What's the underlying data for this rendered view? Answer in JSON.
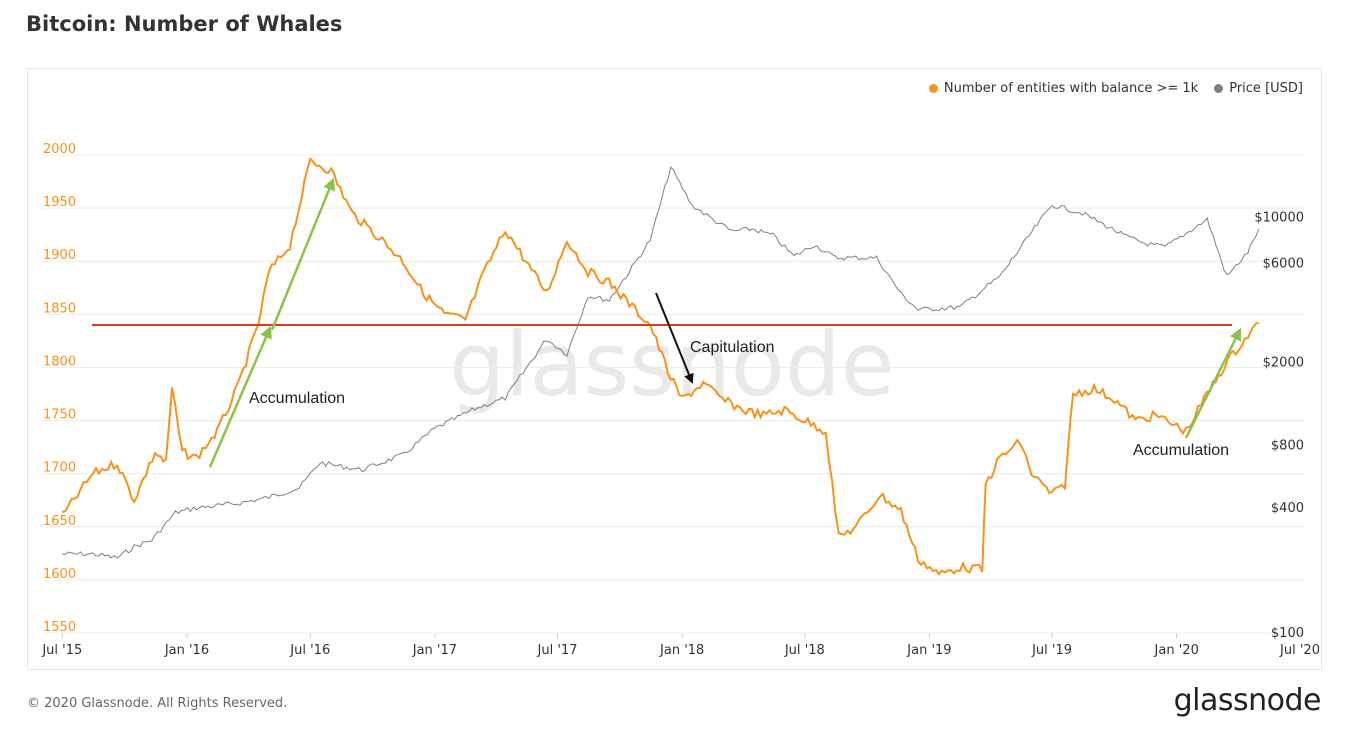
{
  "title": "Bitcoin: Number of Whales",
  "footer": "© 2020 Glassnode. All Rights Reserved.",
  "brand": "glassnode",
  "watermark": "glassnode",
  "legend": [
    {
      "label": "Number of entities with balance >= 1k",
      "color": "#f7931a"
    },
    {
      "label": "Price [USD]",
      "color": "#808080"
    }
  ],
  "annotations": [
    {
      "text": "Accumulation"
    },
    {
      "text": "Capitulation"
    },
    {
      "text": "Accumulation"
    }
  ],
  "chart_data": {
    "type": "line",
    "x_ticks": [
      "Jul '15",
      "Jan '16",
      "Jul '16",
      "Jan '17",
      "Jul '17",
      "Jan '18",
      "Jul '18",
      "Jan '19",
      "Jul '19",
      "Jan '20",
      "Jul '20"
    ],
    "y_left": {
      "ticks": [
        2000,
        1950,
        1900,
        1850,
        1800,
        1750,
        1700,
        1650,
        1600,
        1550
      ],
      "range": [
        1550,
        2000
      ],
      "color": "#f7931a"
    },
    "y_right": {
      "ticks": [
        "$10000",
        "$6000",
        "$2000",
        "$800",
        "$400",
        "$100"
      ],
      "scale": "log",
      "range": [
        100,
        20000
      ]
    },
    "grid": true,
    "legend_position": "top-right",
    "reference_line": {
      "value": 1840,
      "color": "#e03a1e"
    },
    "series": [
      {
        "name": "Number of entities with balance >= 1k",
        "axis": "left",
        "color": "#f7931a",
        "points": [
          [
            "2015-07-01",
            1660
          ],
          [
            "2015-08-15",
            1700
          ],
          [
            "2015-09-20",
            1710
          ],
          [
            "2015-10-15",
            1675
          ],
          [
            "2015-11-15",
            1720
          ],
          [
            "2015-12-01",
            1710
          ],
          [
            "2015-12-10",
            1780
          ],
          [
            "2015-12-25",
            1720
          ],
          [
            "2016-01-15",
            1715
          ],
          [
            "2016-02-15",
            1740
          ],
          [
            "2016-03-15",
            1780
          ],
          [
            "2016-04-15",
            1840
          ],
          [
            "2016-05-01",
            1890
          ],
          [
            "2016-06-01",
            1915
          ],
          [
            "2016-07-01",
            1995
          ],
          [
            "2016-08-01",
            1985
          ],
          [
            "2016-09-01",
            1945
          ],
          [
            "2016-10-15",
            1920
          ],
          [
            "2016-11-15",
            1900
          ],
          [
            "2016-12-15",
            1870
          ],
          [
            "2017-01-15",
            1850
          ],
          [
            "2017-02-15",
            1845
          ],
          [
            "2017-03-15",
            1890
          ],
          [
            "2017-04-15",
            1930
          ],
          [
            "2017-05-15",
            1900
          ],
          [
            "2017-06-15",
            1870
          ],
          [
            "2017-07-15",
            1920
          ],
          [
            "2017-08-15",
            1890
          ],
          [
            "2017-09-15",
            1880
          ],
          [
            "2017-10-15",
            1860
          ],
          [
            "2017-11-15",
            1840
          ],
          [
            "2017-12-15",
            1790
          ],
          [
            "2018-01-01",
            1770
          ],
          [
            "2018-02-01",
            1785
          ],
          [
            "2018-03-01",
            1770
          ],
          [
            "2018-04-01",
            1760
          ],
          [
            "2018-05-01",
            1755
          ],
          [
            "2018-06-01",
            1760
          ],
          [
            "2018-07-01",
            1750
          ],
          [
            "2018-08-01",
            1740
          ],
          [
            "2018-08-20",
            1640
          ],
          [
            "2018-09-15",
            1650
          ],
          [
            "2018-10-20",
            1680
          ],
          [
            "2018-11-20",
            1665
          ],
          [
            "2018-12-15",
            1620
          ],
          [
            "2019-01-15",
            1605
          ],
          [
            "2019-02-15",
            1612
          ],
          [
            "2019-03-20",
            1610
          ],
          [
            "2019-03-25",
            1690
          ],
          [
            "2019-04-15",
            1715
          ],
          [
            "2019-05-15",
            1730
          ],
          [
            "2019-06-01",
            1700
          ],
          [
            "2019-07-01",
            1680
          ],
          [
            "2019-07-20",
            1690
          ],
          [
            "2019-08-01",
            1775
          ],
          [
            "2019-09-01",
            1780
          ],
          [
            "2019-10-01",
            1770
          ],
          [
            "2019-11-01",
            1750
          ],
          [
            "2019-12-01",
            1755
          ],
          [
            "2020-01-15",
            1740
          ],
          [
            "2020-02-15",
            1775
          ],
          [
            "2020-03-15",
            1805
          ],
          [
            "2020-04-15",
            1830
          ],
          [
            "2020-05-01",
            1842
          ]
        ]
      },
      {
        "name": "Price [USD]",
        "axis": "right",
        "color": "#808080",
        "points": [
          [
            "2015-07-01",
            240
          ],
          [
            "2015-08-15",
            240
          ],
          [
            "2015-09-20",
            230
          ],
          [
            "2015-10-15",
            260
          ],
          [
            "2015-11-10",
            280
          ],
          [
            "2015-12-15",
            380
          ],
          [
            "2016-01-15",
            400
          ],
          [
            "2016-03-15",
            420
          ],
          [
            "2016-05-01",
            450
          ],
          [
            "2016-06-15",
            500
          ],
          [
            "2016-07-15",
            660
          ],
          [
            "2016-09-15",
            610
          ],
          [
            "2016-11-15",
            720
          ],
          [
            "2016-12-31",
            960
          ],
          [
            "2017-03-01",
            1200
          ],
          [
            "2017-04-15",
            1350
          ],
          [
            "2017-06-15",
            2600
          ],
          [
            "2017-07-15",
            2200
          ],
          [
            "2017-08-15",
            4200
          ],
          [
            "2017-09-15",
            4000
          ],
          [
            "2017-10-15",
            5500
          ],
          [
            "2017-11-15",
            7800
          ],
          [
            "2017-12-15",
            17500
          ],
          [
            "2018-01-15",
            11500
          ],
          [
            "2018-02-15",
            9800
          ],
          [
            "2018-03-15",
            8600
          ],
          [
            "2018-04-15",
            8800
          ],
          [
            "2018-05-15",
            8200
          ],
          [
            "2018-06-15",
            6500
          ],
          [
            "2018-07-15",
            7400
          ],
          [
            "2018-08-15",
            6400
          ],
          [
            "2018-10-15",
            6400
          ],
          [
            "2018-11-20",
            4300
          ],
          [
            "2018-12-15",
            3600
          ],
          [
            "2019-02-15",
            3700
          ],
          [
            "2019-04-15",
            5200
          ],
          [
            "2019-06-01",
            8500
          ],
          [
            "2019-07-01",
            11500
          ],
          [
            "2019-08-15",
            10500
          ],
          [
            "2019-10-15",
            8200
          ],
          [
            "2019-11-15",
            7500
          ],
          [
            "2019-12-15",
            7200
          ],
          [
            "2020-02-15",
            9800
          ],
          [
            "2020-03-15",
            5200
          ],
          [
            "2020-04-15",
            6800
          ],
          [
            "2020-05-01",
            8800
          ]
        ]
      }
    ]
  }
}
